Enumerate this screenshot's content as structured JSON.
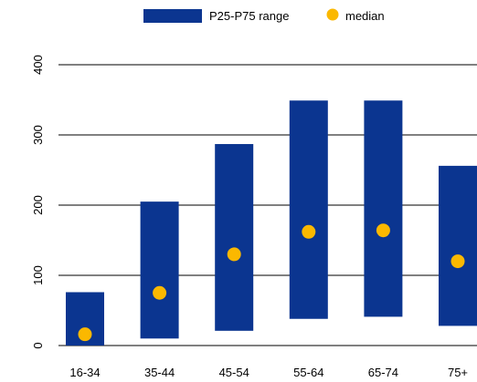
{
  "chart_data": {
    "type": "bar",
    "categories": [
      "16-34",
      "35-44",
      "45-54",
      "55-64",
      "65-74",
      "75+"
    ],
    "series": [
      {
        "name": "P25-P75 range",
        "kind": "floating-bar",
        "low": [
          0,
          10,
          21,
          38,
          41,
          28
        ],
        "high": [
          76,
          205,
          287,
          349,
          349,
          256
        ]
      },
      {
        "name": "median",
        "kind": "marker",
        "values": [
          16,
          75,
          130,
          162,
          164,
          120
        ]
      }
    ],
    "ylim": [
      0,
      400
    ],
    "yticks": [
      0,
      100,
      200,
      300,
      400
    ],
    "grid": true,
    "legend": "top",
    "colors": {
      "range": "#0b3590",
      "median": "#fbb800",
      "grid": "#000000"
    }
  }
}
